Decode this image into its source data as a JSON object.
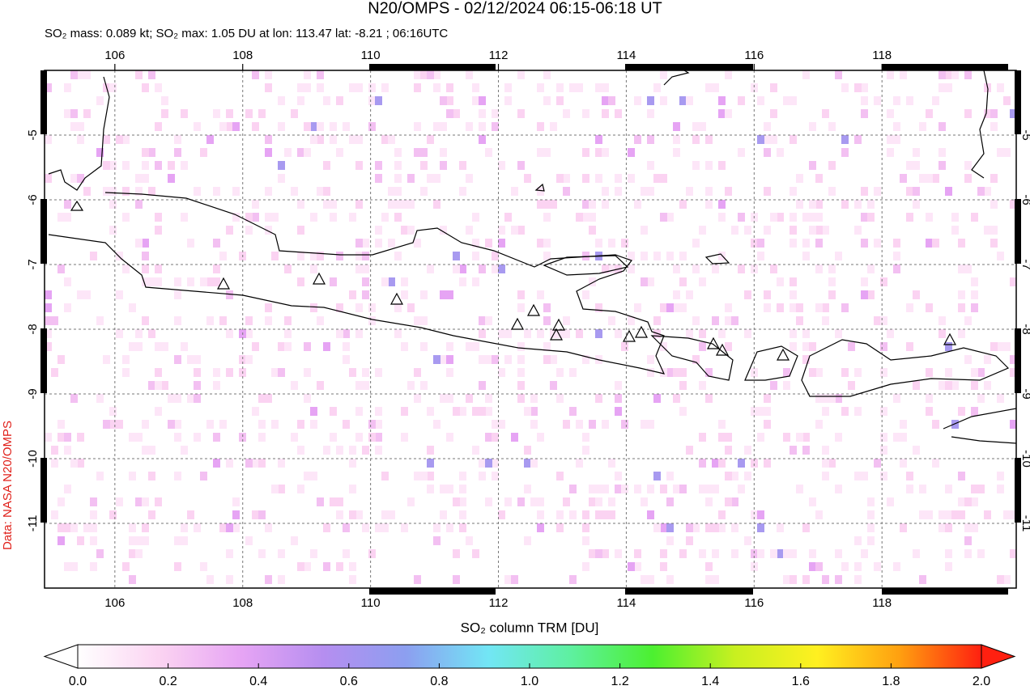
{
  "chart_data": {
    "type": "map",
    "title": "N20/OMPS - 02/12/2024 06:15-06:18 UT",
    "subtitle": "SO₂ mass: 0.089 kt; SO₂ max: 1.05 DU at lon: 113.47 lat: -8.21 ; 06:16UTC",
    "credit": "Data: NASA N20/OMPS",
    "colorbar_label": "SO₂ column TRM [DU]",
    "xlim": [
      104.9,
      120.1
    ],
    "ylim": [
      -12,
      -4
    ],
    "xticks": [
      106,
      108,
      110,
      112,
      114,
      116,
      118
    ],
    "yticks": [
      -5,
      -6,
      -7,
      -8,
      -9,
      -10,
      -11
    ],
    "grid": true,
    "colorbar_lim": [
      0,
      2
    ],
    "colorbar_ticks": [
      {
        "value": 0,
        "label": "0.0"
      },
      {
        "value": 0.2,
        "label": "0.2"
      },
      {
        "value": 0.4,
        "label": "0.4"
      },
      {
        "value": 0.6,
        "label": "0.6"
      },
      {
        "value": 0.8,
        "label": "0.8"
      },
      {
        "value": 1,
        "label": "1.0"
      },
      {
        "value": 1.2,
        "label": "1.2"
      },
      {
        "value": 1.4,
        "label": "1.4"
      },
      {
        "value": 1.6,
        "label": "1.6"
      },
      {
        "value": 1.8,
        "label": "1.8"
      },
      {
        "value": 2,
        "label": "2.0"
      }
    ],
    "colors": [
      "#ffffff",
      "#fbd3f2",
      "#e6a4f4",
      "#b58ef0",
      "#8c9ff0",
      "#72e6f5",
      "#5ef0a0",
      "#4cf030",
      "#c8f020",
      "#fff020",
      "#ffa010",
      "#ff2010"
    ]
  }
}
